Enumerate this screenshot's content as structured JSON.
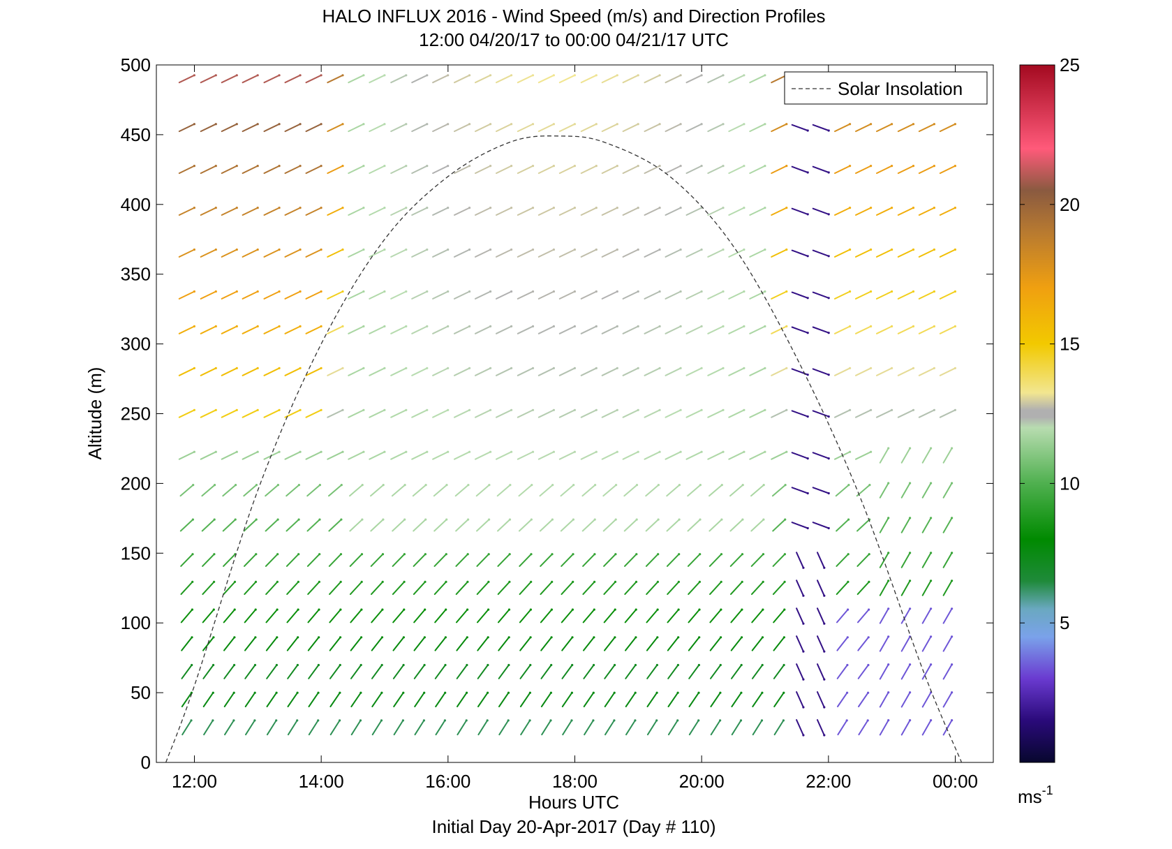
{
  "chart_data": {
    "type": "wind-barb-profile",
    "title": "HALO INFLUX 2016 - Wind Speed (m/s) and Direction Profiles",
    "subtitle": "12:00 04/20/17 to 00:00 04/21/17  UTC",
    "xlabel": "Hours UTC",
    "ylabel": "Altitude (m)",
    "footnote": "Initial Day 20-Apr-2017 (Day # 110)",
    "xlim": [
      11.4,
      24.6
    ],
    "ylim": [
      0,
      500
    ],
    "x_ticks": [
      12,
      14,
      16,
      18,
      20,
      22,
      24
    ],
    "x_tick_labels": [
      "12:00",
      "14:00",
      "16:00",
      "18:00",
      "20:00",
      "22:00",
      "00:00"
    ],
    "y_ticks": [
      0,
      50,
      100,
      150,
      200,
      250,
      300,
      350,
      400,
      450,
      500
    ],
    "y_tick_labels": [
      "0",
      "50",
      "100",
      "150",
      "200",
      "250",
      "300",
      "350",
      "400",
      "450",
      "500"
    ],
    "legend": {
      "label": "Solar Insolation",
      "placement": "top-right"
    },
    "colorbar": {
      "min": 0,
      "max": 25,
      "ticks": [
        5,
        10,
        15,
        20,
        25
      ],
      "tick_labels": [
        "5",
        "10",
        "15",
        "20",
        "25"
      ],
      "unit_base": "ms",
      "unit_exp": "-1"
    },
    "solar_insolation": {
      "style": "dashed",
      "points": [
        [
          11.55,
          0
        ],
        [
          12.0,
          55
        ],
        [
          13.0,
          195
        ],
        [
          14.0,
          300
        ],
        [
          15.0,
          375
        ],
        [
          16.0,
          420
        ],
        [
          17.0,
          445
        ],
        [
          17.8,
          449
        ],
        [
          18.5,
          444
        ],
        [
          19.5,
          420
        ],
        [
          20.5,
          370
        ],
        [
          21.5,
          290
        ],
        [
          22.5,
          190
        ],
        [
          23.5,
          65
        ],
        [
          24.1,
          0
        ]
      ]
    },
    "altitudes": [
      25,
      45,
      65,
      85,
      105,
      125,
      145,
      170,
      195,
      220,
      250,
      280,
      310,
      335,
      365,
      395,
      425,
      455,
      490
    ],
    "times": [
      11.88,
      12.22,
      12.55,
      12.88,
      13.22,
      13.55,
      13.88,
      14.22,
      14.55,
      14.88,
      15.22,
      15.55,
      15.88,
      16.22,
      16.55,
      16.88,
      17.22,
      17.55,
      17.88,
      18.22,
      18.55,
      18.88,
      19.22,
      19.55,
      19.88,
      20.22,
      20.55,
      20.88,
      21.22,
      21.55,
      21.88,
      22.22,
      22.55,
      22.88,
      23.22,
      23.55,
      23.88
    ],
    "low_level_jet": {
      "time": 21.88,
      "note": ""
    }
  }
}
